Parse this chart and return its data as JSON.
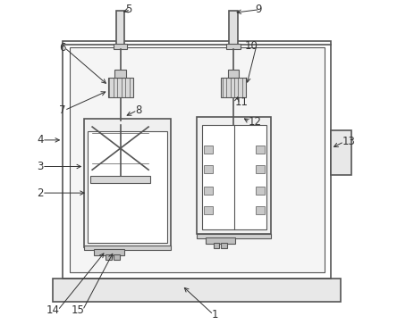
{
  "bg_color": "#ffffff",
  "line_color": "#555555",
  "label_color": "#333333",
  "figsize": [
    4.44,
    3.73
  ],
  "dpi": 100,
  "label_text_pos": {
    "1": [
      0.54,
      0.052,
      0.45,
      0.14,
      "left"
    ],
    "2": [
      0.032,
      0.42,
      0.165,
      0.42,
      "right"
    ],
    "3": [
      0.032,
      0.5,
      0.155,
      0.5,
      "right"
    ],
    "4": [
      0.032,
      0.58,
      0.09,
      0.58,
      "right"
    ],
    "5": [
      0.3,
      0.975,
      0.265,
      0.965,
      "right"
    ],
    "6": [
      0.1,
      0.86,
      0.228,
      0.745,
      "right"
    ],
    "7": [
      0.1,
      0.67,
      0.228,
      0.73,
      "right"
    ],
    "8": [
      0.31,
      0.67,
      0.275,
      0.65,
      "left"
    ],
    "9": [
      0.69,
      0.975,
      0.606,
      0.965,
      "right"
    ],
    "10": [
      0.68,
      0.865,
      0.645,
      0.745,
      "right"
    ],
    "11": [
      0.61,
      0.695,
      0.62,
      0.72,
      "left"
    ],
    "12": [
      0.65,
      0.635,
      0.63,
      0.65,
      "left"
    ],
    "13": [
      0.935,
      0.575,
      0.9,
      0.555,
      "left"
    ],
    "14": [
      0.08,
      0.065,
      0.22,
      0.245,
      "right"
    ],
    "15": [
      0.155,
      0.065,
      0.245,
      0.245,
      "right"
    ]
  }
}
